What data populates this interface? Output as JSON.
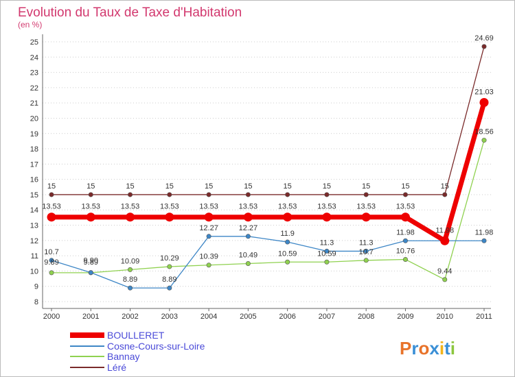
{
  "header": {
    "title": "Evolution du Taux de Taxe d'Habitation",
    "subtitle": "(en %)"
  },
  "brand": {
    "letters": [
      "P",
      "r",
      "o",
      "x",
      "i",
      "t",
      "i"
    ],
    "colors": [
      "#e8732a",
      "#3a8fd6",
      "#e8732a",
      "#3a8fd6",
      "#f2b41c",
      "#3a8fd6",
      "#8cc63e"
    ]
  },
  "chart_data": {
    "type": "line",
    "title": "Evolution du Taux de Taxe d'Habitation",
    "subtitle": "(en %)",
    "xlabel": "",
    "ylabel": "",
    "x": [
      "2000",
      "2001",
      "2002",
      "2003",
      "2004",
      "2005",
      "2006",
      "2007",
      "2008",
      "2009",
      "2010",
      "2011"
    ],
    "ylim": [
      8,
      25
    ],
    "yticks": [
      8,
      9,
      10,
      11,
      12,
      13,
      14,
      15,
      16,
      17,
      18,
      19,
      20,
      21,
      22,
      23,
      24,
      25
    ],
    "grid": "horizontal-dotted",
    "legend_position": "bottom-left",
    "series": [
      {
        "name": "BOULLERET",
        "color": "#ee0000",
        "values": [
          13.53,
          13.53,
          13.53,
          13.53,
          13.53,
          13.53,
          13.53,
          13.53,
          13.53,
          13.53,
          11.98,
          21.03
        ],
        "labels": [
          "13.53",
          "13.53",
          "13.53",
          "13.53",
          "13.53",
          "13.53",
          "13.53",
          "13.53",
          "13.53",
          "13.53",
          "11.98",
          "21.03"
        ]
      },
      {
        "name": "Cosne-Cours-sur-Loire",
        "color": "#3d86c6",
        "values": [
          10.7,
          9.9,
          8.89,
          8.89,
          12.27,
          12.27,
          11.9,
          11.3,
          11.3,
          11.98,
          11.98,
          11.98
        ],
        "labels": [
          "10.7",
          "9.90",
          "8.89",
          "8.89",
          "12.27",
          "12.27",
          "11.9",
          "11.3",
          "11.3",
          "11.98",
          "",
          "11.98"
        ]
      },
      {
        "name": "Bannay",
        "color": "#8fd14f",
        "values": [
          9.89,
          9.89,
          10.09,
          10.29,
          10.39,
          10.49,
          10.59,
          10.59,
          10.7,
          10.76,
          9.44,
          18.56
        ],
        "labels": [
          "9.89",
          "9.89",
          "10.09",
          "10.29",
          "10.39",
          "10.49",
          "10.59",
          "10.59",
          "10.7",
          "10.76",
          "9.44",
          "18.56"
        ]
      },
      {
        "name": "Léré",
        "color": "#7a2a2a",
        "values": [
          15,
          15,
          15,
          15,
          15,
          15,
          15,
          15,
          15,
          15,
          15,
          24.69
        ],
        "labels": [
          "15",
          "15",
          "15",
          "15",
          "15",
          "15",
          "15",
          "15",
          "15",
          "15",
          "15",
          "24.69"
        ]
      }
    ]
  }
}
